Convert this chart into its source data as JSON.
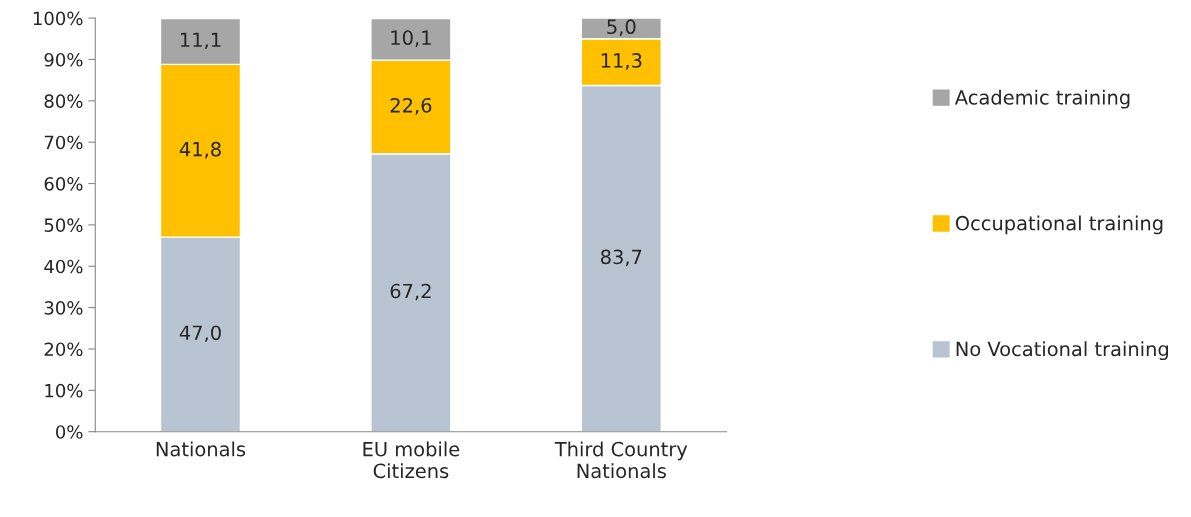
{
  "chart_data": {
    "type": "bar",
    "stacked": true,
    "categories": [
      "Nationals",
      "EU mobile\nCitizens",
      "Third Country\nNationals"
    ],
    "series": [
      {
        "name": "No Vocational training",
        "color": "#b9c4d3",
        "values": [
          47.0,
          67.2,
          83.7
        ],
        "value_labels": [
          "47,0",
          "67,2",
          "83,7"
        ]
      },
      {
        "name": "Occupational training",
        "color": "#ffc000",
        "values": [
          41.8,
          22.6,
          11.3
        ],
        "value_labels": [
          "41,8",
          "22,6",
          "11,3"
        ]
      },
      {
        "name": "Academic training",
        "color": "#a6a6a6",
        "values": [
          11.1,
          10.1,
          5.0
        ],
        "value_labels": [
          "11,1",
          "10,1",
          "5,0"
        ]
      }
    ],
    "ylim": [
      0,
      100
    ],
    "yticks": [
      {
        "value": 0,
        "label": "0%"
      },
      {
        "value": 10,
        "label": "10%"
      },
      {
        "value": 20,
        "label": "20%"
      },
      {
        "value": 30,
        "label": "30%"
      },
      {
        "value": 40,
        "label": "40%"
      },
      {
        "value": 50,
        "label": "50%"
      },
      {
        "value": 60,
        "label": "60%"
      },
      {
        "value": 70,
        "label": "70%"
      },
      {
        "value": 80,
        "label": "80%"
      },
      {
        "value": 90,
        "label": "90%"
      },
      {
        "value": 100,
        "label": "100%"
      }
    ],
    "grid": false,
    "legend": "right"
  }
}
